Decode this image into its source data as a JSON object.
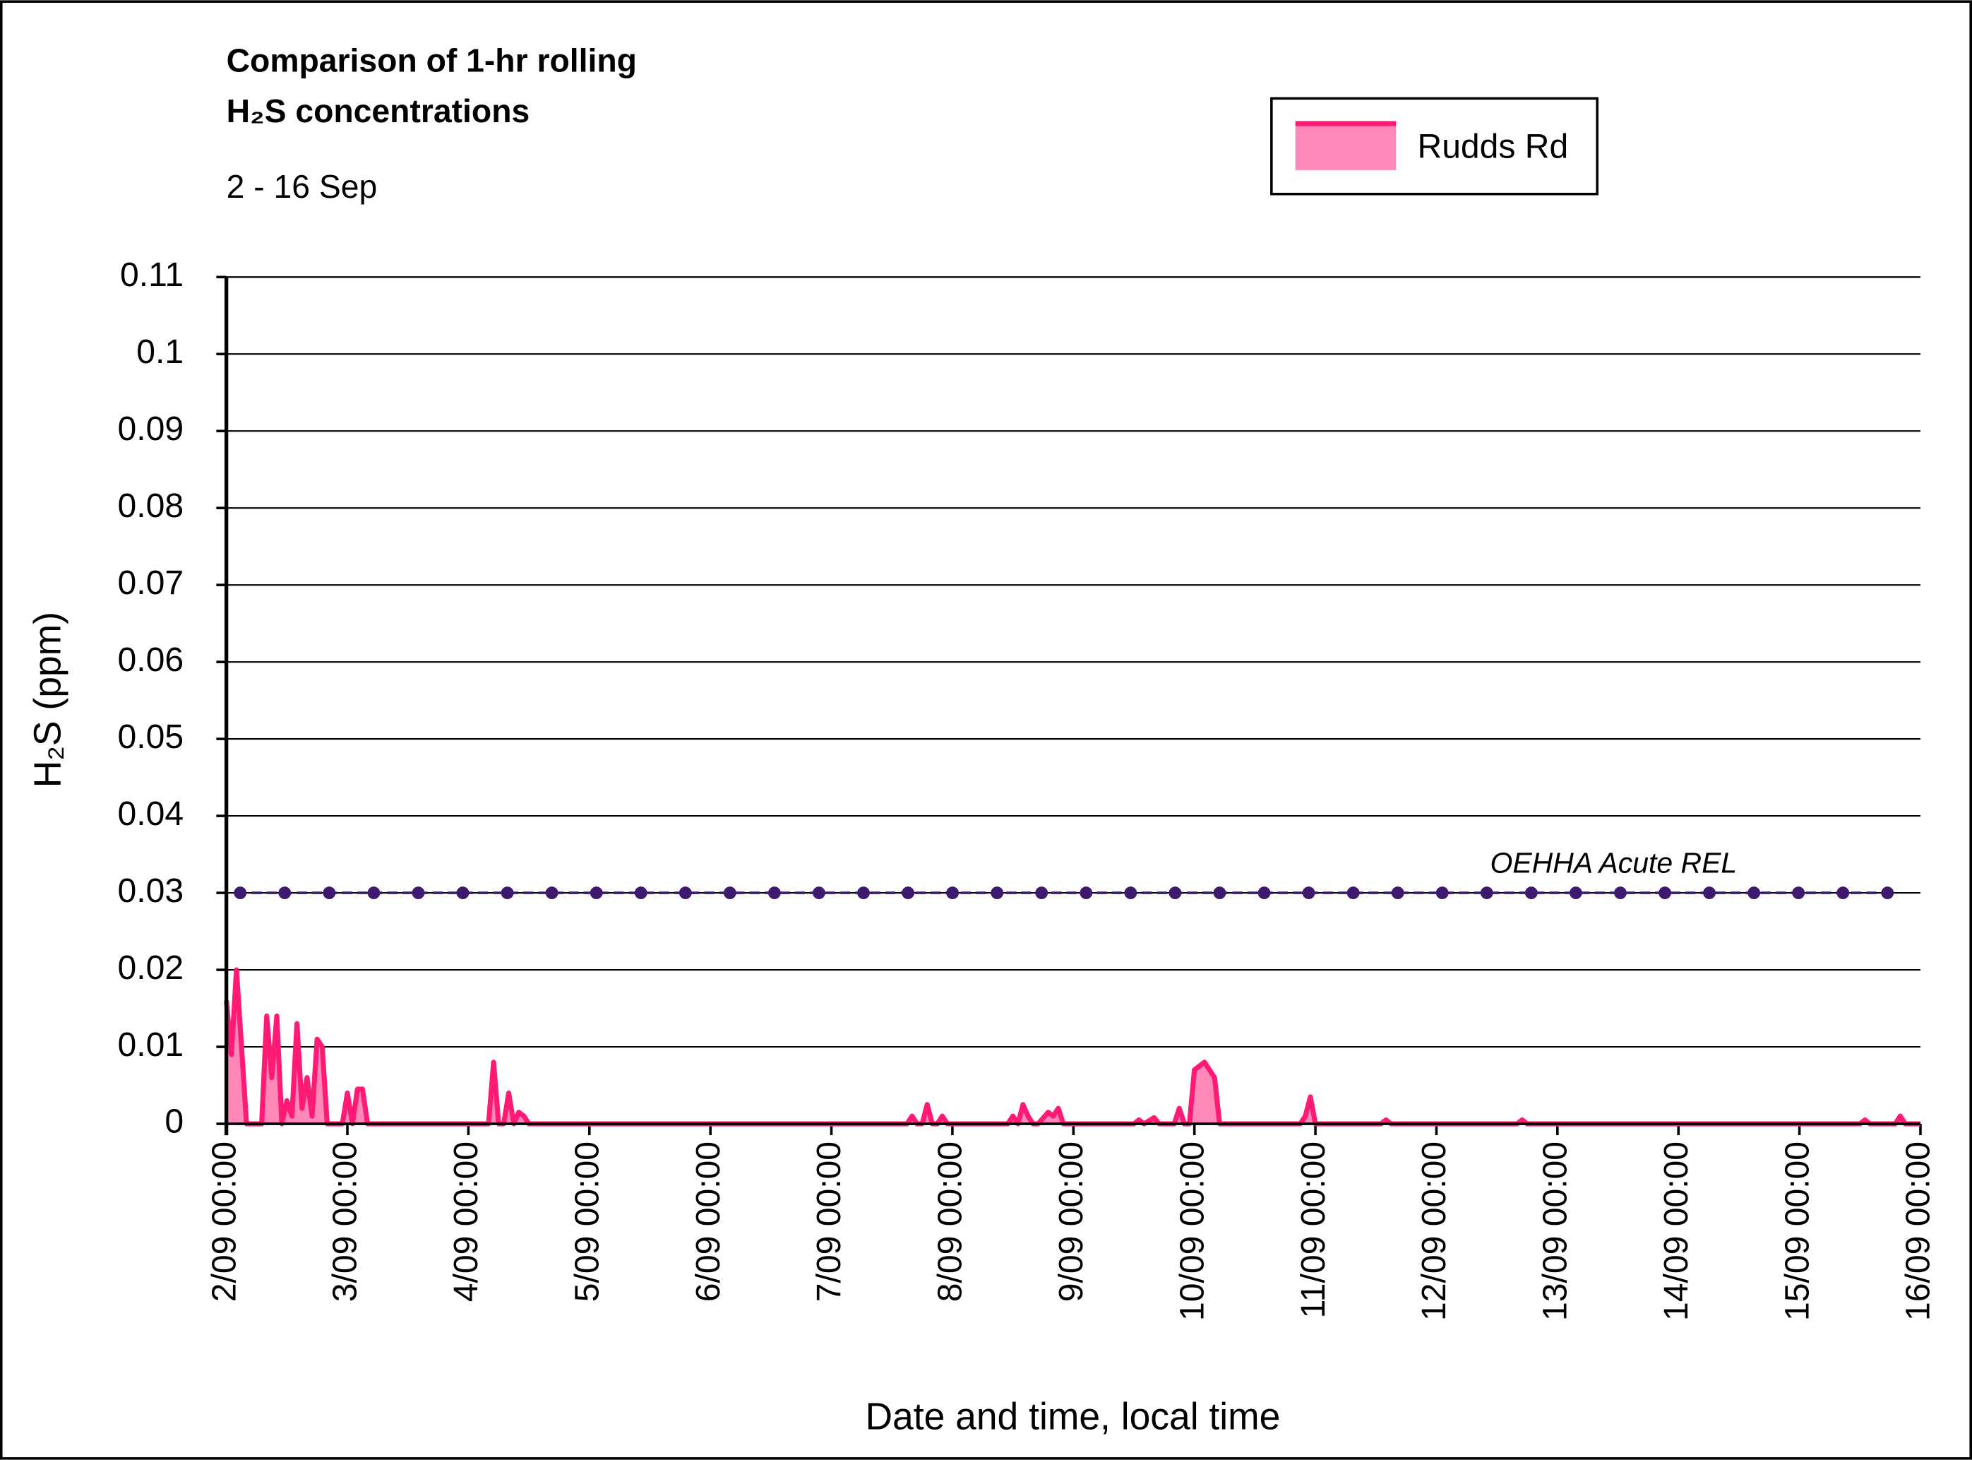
{
  "chart_data": {
    "type": "area",
    "title": [
      "Comparison of 1-hr rolling",
      "H₂S concentrations"
    ],
    "subtitle": "2 - 16 Sep",
    "x_label": "Date and time, local time",
    "y_label": "H₂S (ppm)",
    "xlim": [
      "2/09 00:00",
      "16/09 00:00"
    ],
    "xticks": [
      "2/09 00:00",
      "3/09 00:00",
      "4/09 00:00",
      "5/09 00:00",
      "6/09 00:00",
      "7/09 00:00",
      "8/09 00:00",
      "9/09 00:00",
      "10/09 00:00",
      "11/09 00:00",
      "12/09 00:00",
      "13/09 00:00",
      "14/09 00:00",
      "15/09 00:00",
      "16/09 00:00"
    ],
    "ylim": [
      0,
      0.11
    ],
    "yticks": [
      0,
      0.01,
      0.02,
      0.03,
      0.04,
      0.05,
      0.06,
      0.07,
      0.08,
      0.09,
      0.1,
      0.11
    ],
    "grid": true,
    "legend": "top-right",
    "x": [
      "2/09 00:00",
      "2/09 01:00",
      "2/09 02:00",
      "2/09 04:00",
      "2/09 07:00",
      "2/09 08:00",
      "2/09 09:00",
      "2/09 10:00",
      "2/09 11:00",
      "2/09 12:00",
      "2/09 13:00",
      "2/09 14:00",
      "2/09 15:00",
      "2/09 16:00",
      "2/09 17:00",
      "2/09 18:00",
      "2/09 19:00",
      "2/09 20:00",
      "2/09 23:00",
      "3/09 00:00",
      "3/09 01:00",
      "3/09 02:00",
      "3/09 03:00",
      "3/09 04:00",
      "4/09 04:00",
      "4/09 05:00",
      "4/09 06:00",
      "4/09 07:00",
      "4/09 08:00",
      "4/09 09:00",
      "4/09 10:00",
      "4/09 11:00",
      "4/09 12:00",
      "7/09 15:00",
      "7/09 16:00",
      "7/09 17:00",
      "7/09 18:00",
      "7/09 19:00",
      "7/09 20:00",
      "7/09 21:00",
      "7/09 22:00",
      "7/09 23:00",
      "8/09 11:00",
      "8/09 12:00",
      "8/09 13:00",
      "8/09 14:00",
      "8/09 15:00",
      "8/09 16:00",
      "8/09 17:00",
      "8/09 19:00",
      "8/09 20:00",
      "8/09 21:00",
      "8/09 22:00",
      "9/09 12:00",
      "9/09 13:00",
      "9/09 14:00",
      "9/09 16:00",
      "9/09 17:00",
      "9/09 20:00",
      "9/09 21:00",
      "9/09 22:00",
      "9/09 23:00",
      "10/09 00:00",
      "10/09 02:00",
      "10/09 04:00",
      "10/09 05:00",
      "10/09 21:00",
      "10/09 22:00",
      "10/09 23:00",
      "11/09 00:00",
      "11/09 13:00",
      "11/09 14:00",
      "11/09 15:00",
      "12/09 16:00",
      "12/09 17:00",
      "12/09 18:00",
      "15/09 12:00",
      "15/09 13:00",
      "15/09 14:00",
      "15/09 19:00",
      "15/09 20:00",
      "15/09 21:00",
      "16/09 00:00"
    ],
    "series": [
      {
        "name": "Rudds Rd",
        "color": "#ff1a75",
        "fill": "#ff88b8",
        "values": [
          0.016,
          0.009,
          0.02,
          0,
          0,
          0.014,
          0.006,
          0.014,
          0,
          0.003,
          0.001,
          0.013,
          0.002,
          0.006,
          0.001,
          0.011,
          0.01,
          0,
          0,
          0.004,
          0,
          0.0045,
          0.0045,
          0,
          0,
          0.008,
          0,
          0,
          0.004,
          0,
          0.0015,
          0.001,
          0,
          0,
          0.001,
          0,
          0,
          0.0025,
          0,
          0,
          0.001,
          0,
          0,
          0.001,
          0,
          0.0025,
          0.001,
          0,
          0,
          0.0015,
          0.001,
          0.002,
          0,
          0,
          0.0005,
          0,
          0.0008,
          0,
          0,
          0.002,
          0,
          0,
          0.007,
          0.008,
          0.006,
          0,
          0,
          0.001,
          0.0035,
          0,
          0,
          0.0005,
          0,
          0,
          0.0005,
          0,
          0,
          0.0005,
          0,
          0,
          0.001,
          0,
          0
        ]
      }
    ],
    "reference_line": {
      "label": "OEHHA Acute REL",
      "value": 0.03,
      "color": "#3d1a6e"
    }
  }
}
